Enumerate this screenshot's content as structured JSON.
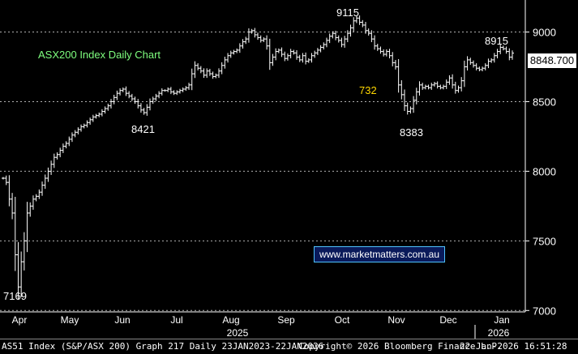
{
  "chart_data": {
    "type": "ohlc",
    "title": "ASX200 Index Daily Chart",
    "y_ticks": [
      7000,
      7500,
      8000,
      8500,
      9000
    ],
    "ylim": [
      6990,
      9230
    ],
    "x_month_labels": [
      "Apr",
      "May",
      "Jun",
      "Jul",
      "Aug",
      "Sep",
      "Oct",
      "Nov",
      "Dec",
      "Jan"
    ],
    "x_year_labels": [
      "2025",
      "2026"
    ],
    "annotations": [
      {
        "label": "7169",
        "value": 7169,
        "color": "white"
      },
      {
        "label": "8421",
        "value": 8421,
        "color": "white"
      },
      {
        "label": "9115",
        "value": 9115,
        "color": "white"
      },
      {
        "label": "732",
        "value": 732,
        "color": "yellow"
      },
      {
        "label": "8383",
        "value": 8383,
        "color": "white"
      },
      {
        "label": "8915",
        "value": 8915,
        "color": "white"
      }
    ],
    "last_price": "8848.700",
    "series": [
      {
        "values": [
          7950,
          7920,
          7800,
          7700,
          7400,
          7169,
          7350,
          7500,
          7700,
          7750,
          7800,
          7820,
          7850,
          7900,
          7950,
          8000,
          8050,
          8100,
          8120,
          8150,
          8180,
          8200,
          8230,
          8260,
          8280,
          8300,
          8320,
          8330,
          8350,
          8370,
          8390,
          8400,
          8410,
          8430,
          8450,
          8470,
          8500,
          8530,
          8560,
          8580,
          8590,
          8560,
          8540,
          8520,
          8500,
          8470,
          8440,
          8421,
          8460,
          8500,
          8520,
          8540,
          8560,
          8580,
          8580,
          8590,
          8570,
          8560,
          8570,
          8580,
          8590,
          8600,
          8620,
          8700,
          8760,
          8740,
          8720,
          8690,
          8720,
          8700,
          8680,
          8690,
          8720,
          8760,
          8800,
          8830,
          8850,
          8860,
          8870,
          8900,
          8930,
          8950,
          9000,
          9010,
          8980,
          8960,
          8940,
          8950,
          8900,
          8780,
          8820,
          8860,
          8870,
          8840,
          8810,
          8830,
          8860,
          8850,
          8820,
          8800,
          8830,
          8790,
          8800,
          8830,
          8850,
          8870,
          8890,
          8910,
          8940,
          8970,
          8990,
          8960,
          8940,
          8910,
          8950,
          8990,
          9030,
          9080,
          9100,
          9070,
          9050,
          9010,
          8990,
          8950,
          8900,
          8880,
          8860,
          8840,
          8860,
          8830,
          8780,
          8750,
          8620,
          8550,
          8470,
          8430,
          8450,
          8510,
          8570,
          8620,
          8600,
          8610,
          8600,
          8620,
          8630,
          8610,
          8600,
          8610,
          8640,
          8670,
          8620,
          8580,
          8600,
          8650,
          8750,
          8800,
          8780,
          8760,
          8740,
          8730,
          8740,
          8760,
          8790,
          8800,
          8830,
          8860,
          8890,
          8880,
          8860,
          8820,
          8849
        ]
      }
    ]
  },
  "watermark": "www.marketmatters.com.au",
  "footer": {
    "left": "AS51 Index (S&P/ASX 200) Graph 217 Daily 23JAN2023-22JAN2026",
    "middle": "Copyright© 2026 Bloomberg Finance L.P.",
    "right": "22-Jan-2026 16:51:28"
  }
}
